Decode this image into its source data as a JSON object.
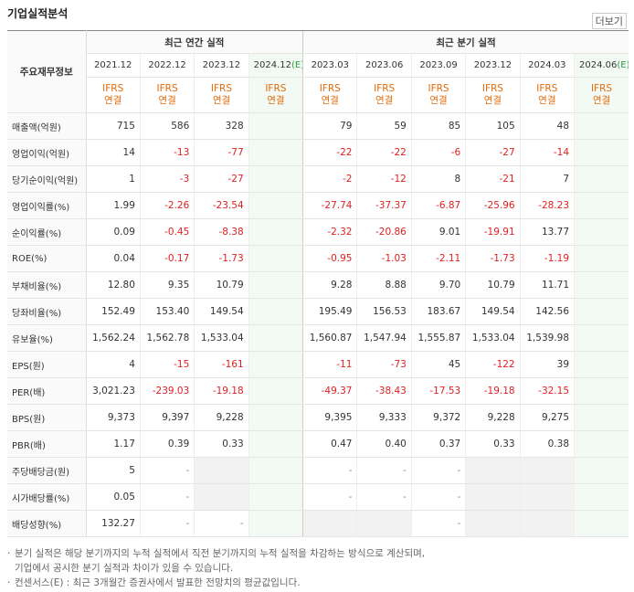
{
  "header": {
    "title": "기업실적분석",
    "more": "더보기"
  },
  "table": {
    "corner": "주요재무정보",
    "groups": [
      {
        "label": "최근 연간 실적",
        "span": 4
      },
      {
        "label": "최근 분기 실적",
        "span": 6
      }
    ],
    "columns": [
      {
        "period": "2021.12"
      },
      {
        "period": "2022.12"
      },
      {
        "period": "2023.12"
      },
      {
        "period": "2024.12",
        "estimate": "(E)"
      },
      {
        "period": "2023.03"
      },
      {
        "period": "2023.06"
      },
      {
        "period": "2023.09"
      },
      {
        "period": "2023.12"
      },
      {
        "period": "2024.03"
      },
      {
        "period": "2024.06",
        "estimate": "(E)"
      }
    ],
    "basis": [
      "IFRS",
      "연결"
    ],
    "rows": [
      {
        "label": "매출액(억원)",
        "cells": [
          "715",
          "586",
          "328",
          null,
          "79",
          "59",
          "85",
          "105",
          "48",
          null
        ]
      },
      {
        "label": "영업이익(억원)",
        "cells": [
          "14",
          "-13",
          "-77",
          null,
          "-22",
          "-22",
          "-6",
          "-27",
          "-14",
          null
        ]
      },
      {
        "label": "당기순이익(억원)",
        "cells": [
          "1",
          "-3",
          "-27",
          null,
          "-2",
          "-12",
          "8",
          "-21",
          "7",
          null
        ]
      },
      {
        "label": "영업이익률(%)",
        "cells": [
          "1.99",
          "-2.26",
          "-23.54",
          null,
          "-27.74",
          "-37.37",
          "-6.87",
          "-25.96",
          "-28.23",
          null
        ]
      },
      {
        "label": "순이익률(%)",
        "cells": [
          "0.09",
          "-0.45",
          "-8.38",
          null,
          "-2.32",
          "-20.86",
          "9.01",
          "-19.91",
          "13.77",
          null
        ]
      },
      {
        "label": "ROE(%)",
        "cells": [
          "0.04",
          "-0.17",
          "-1.73",
          null,
          "-0.95",
          "-1.03",
          "-2.11",
          "-1.73",
          "-1.19",
          null
        ]
      },
      {
        "label": "부채비율(%)",
        "cells": [
          "12.80",
          "9.35",
          "10.79",
          null,
          "9.28",
          "8.88",
          "9.70",
          "10.79",
          "11.71",
          null
        ]
      },
      {
        "label": "당좌비율(%)",
        "cells": [
          "152.49",
          "153.40",
          "149.54",
          null,
          "195.49",
          "156.53",
          "183.67",
          "149.54",
          "142.56",
          null
        ]
      },
      {
        "label": "유보율(%)",
        "cells": [
          "1,562.24",
          "1,562.78",
          "1,533.04",
          null,
          "1,560.87",
          "1,547.94",
          "1,555.87",
          "1,533.04",
          "1,539.98",
          null
        ]
      },
      {
        "label": "EPS(원)",
        "cells": [
          "4",
          "-15",
          "-161",
          null,
          "-11",
          "-73",
          "45",
          "-122",
          "39",
          null
        ]
      },
      {
        "label": "PER(배)",
        "cells": [
          "3,021.23",
          "-239.03",
          "-19.18",
          null,
          "-49.37",
          "-38.43",
          "-17.53",
          "-19.18",
          "-32.15",
          null
        ]
      },
      {
        "label": "BPS(원)",
        "cells": [
          "9,373",
          "9,397",
          "9,228",
          null,
          "9,395",
          "9,333",
          "9,372",
          "9,228",
          "9,275",
          null
        ]
      },
      {
        "label": "PBR(배)",
        "cells": [
          "1.17",
          "0.39",
          "0.33",
          null,
          "0.47",
          "0.40",
          "0.37",
          "0.33",
          "0.38",
          null
        ]
      },
      {
        "label": "주당배당금(원)",
        "cells": [
          "5",
          "-",
          null,
          null,
          "-",
          "-",
          "-",
          null,
          null,
          null
        ]
      },
      {
        "label": "시가배당률(%)",
        "cells": [
          "0.05",
          "-",
          null,
          null,
          "-",
          "-",
          "-",
          null,
          null,
          null
        ]
      },
      {
        "label": "배당성향(%)",
        "cells": [
          "132.27",
          "-",
          "-",
          null,
          null,
          null,
          "-",
          null,
          null,
          null
        ]
      }
    ]
  },
  "notes": [
    "분기 실적은 해당 분기까지의 누적 실적에서 직전 분기까지의 누적 실적을 차감하는 방식으로 계산되며,",
    "기업에서 공시한 분기 실적과 차이가 있을 수 있습니다.",
    "컨센서스(E) : 최근 3개월간 증권사에서 발표한 전망치의 평균값입니다."
  ]
}
